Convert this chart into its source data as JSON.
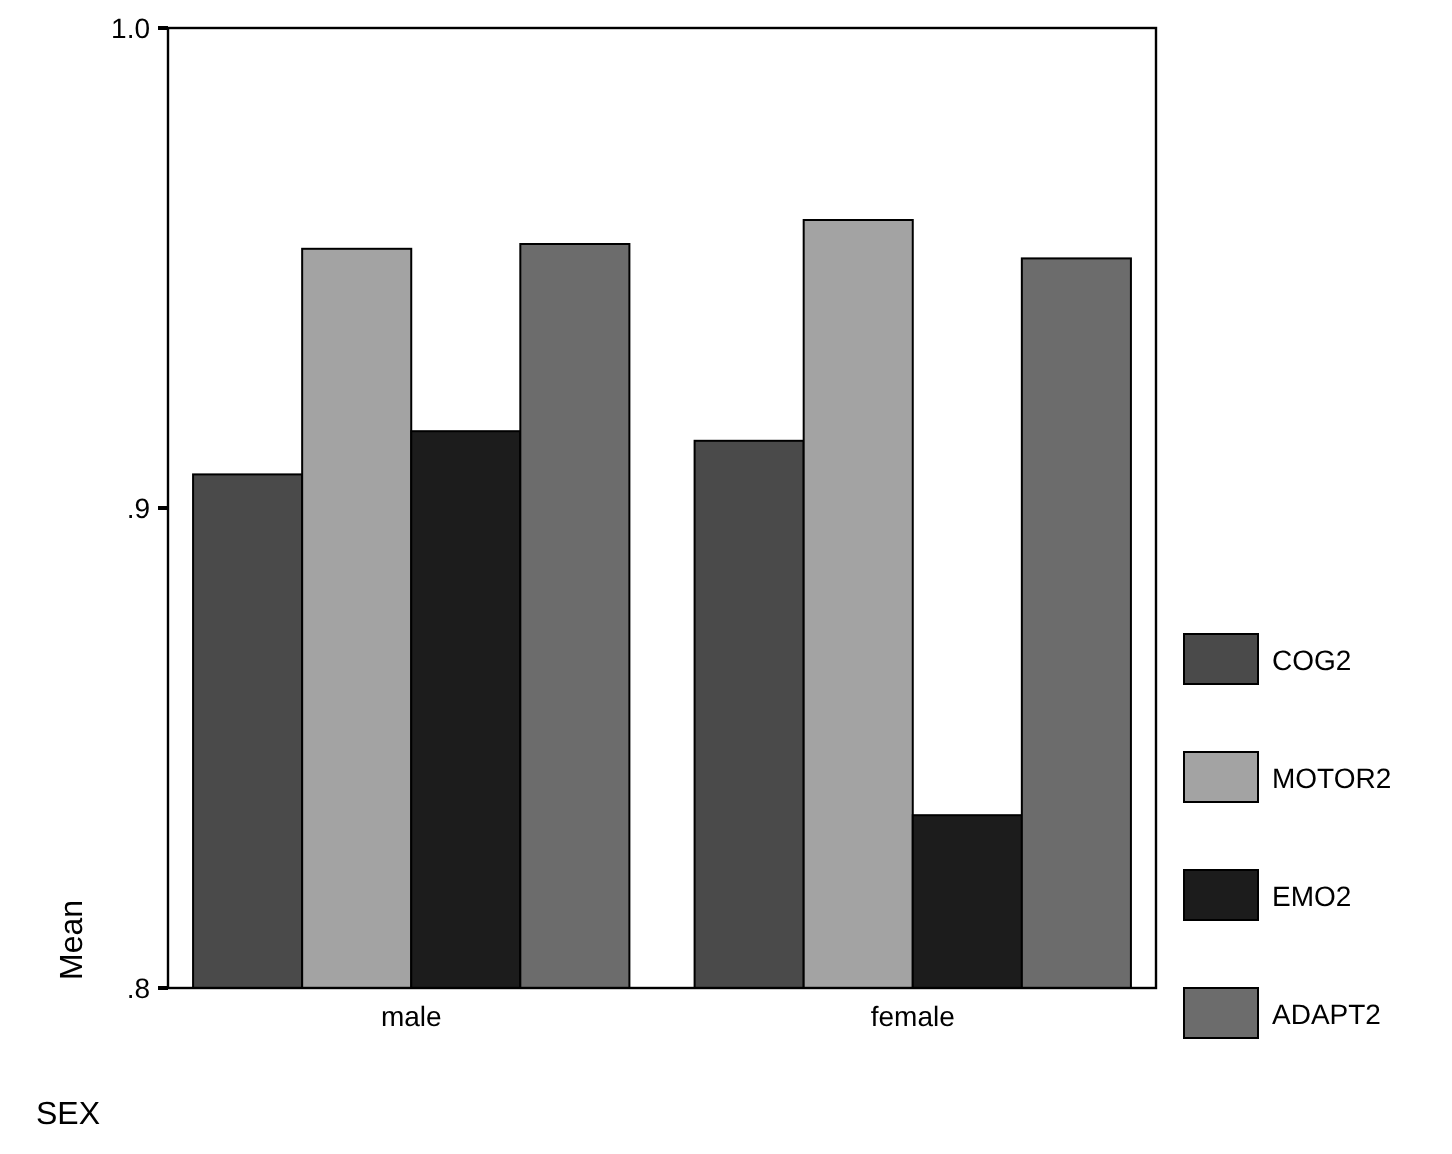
{
  "chart_data": {
    "type": "bar",
    "xlabel": "SEX",
    "ylabel": "Mean",
    "categories": [
      "male",
      "female"
    ],
    "series": [
      {
        "name": "COG2",
        "color": "#4a4a4a",
        "values": [
          0.907,
          0.914
        ]
      },
      {
        "name": "MOTOR2",
        "color": "#a3a3a3",
        "values": [
          0.954,
          0.96
        ]
      },
      {
        "name": "EMO2",
        "color": "#1c1c1c",
        "values": [
          0.916,
          0.836
        ]
      },
      {
        "name": "ADAPT2",
        "color": "#6c6c6c",
        "values": [
          0.955,
          0.952
        ]
      }
    ],
    "ylim": [
      0.8,
      1.0
    ],
    "yticks": [
      {
        "value": 0.8,
        "label": ".8"
      },
      {
        "value": 0.9,
        "label": ".9"
      },
      {
        "value": 1.0,
        "label": "1.0"
      }
    ],
    "grid": false,
    "legend": "right"
  }
}
